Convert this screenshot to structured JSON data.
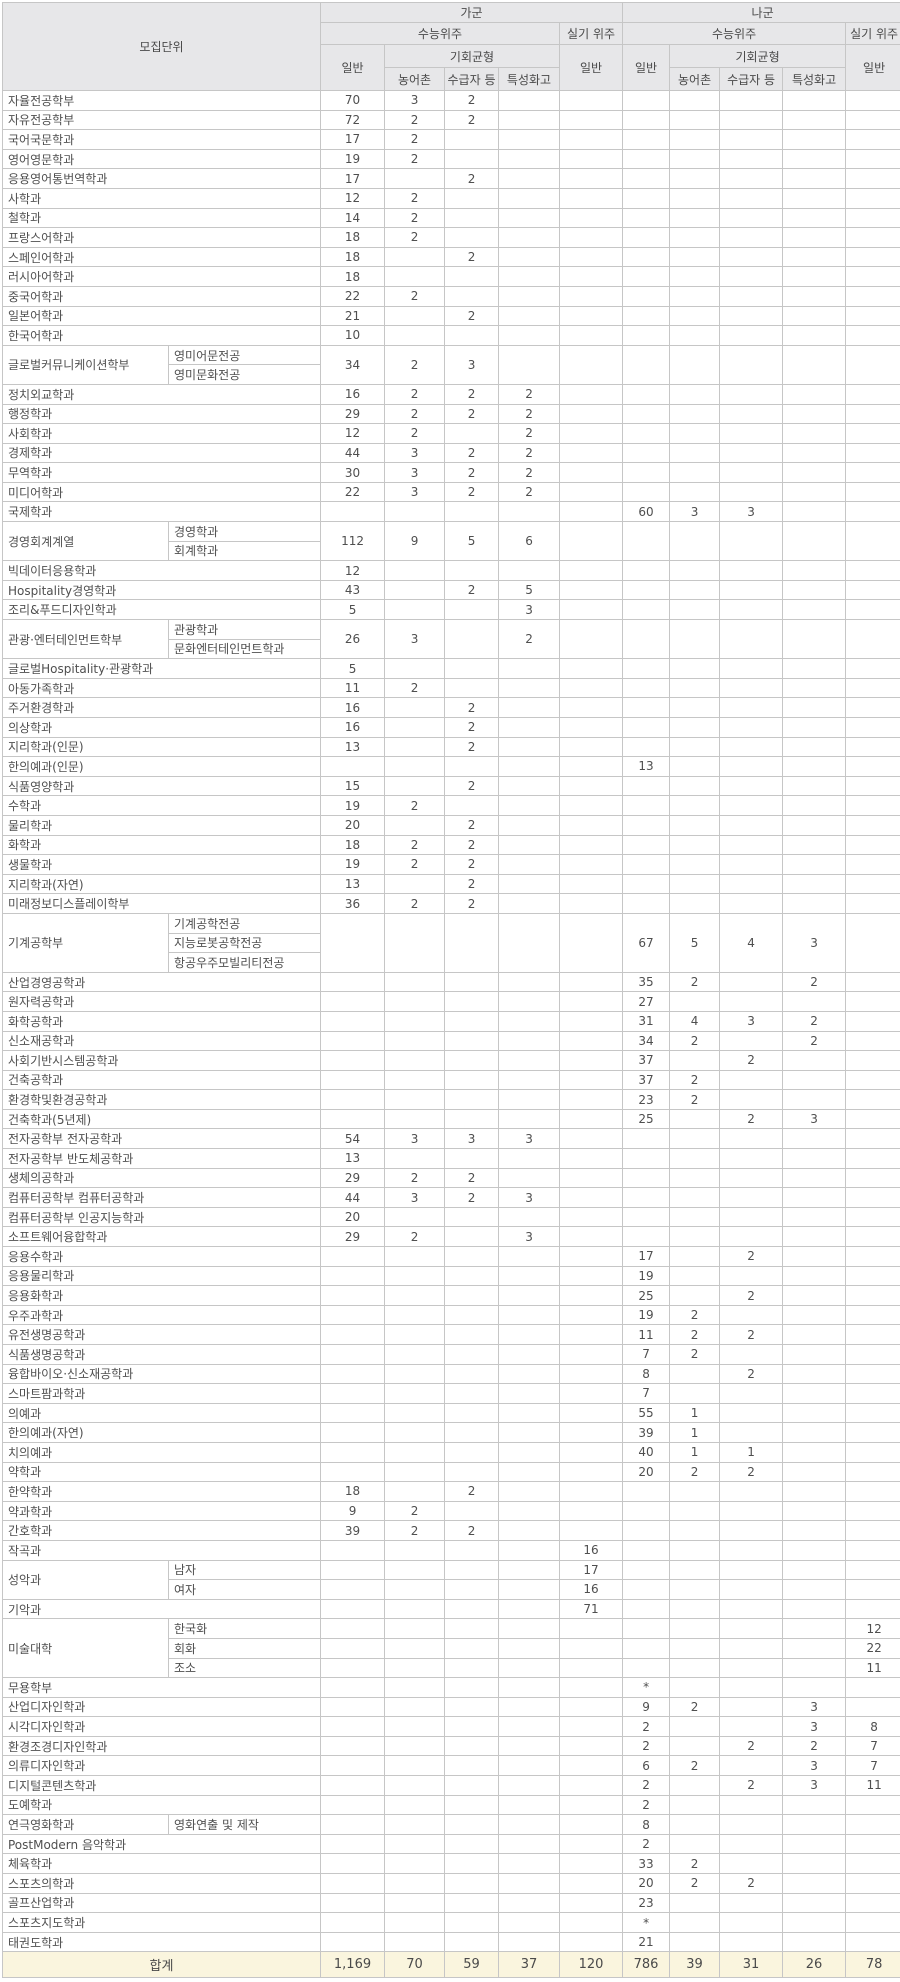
{
  "header": {
    "unit": "모집단위",
    "group_a": "가군",
    "group_b": "나군",
    "csat": "수능위주",
    "practical": "실기 위주",
    "general": "일반",
    "balance": "기회균형",
    "rural": "농어촌",
    "recipient": "수급자 등",
    "specialized": "특성화고"
  },
  "colors": {
    "header_bg": "#e7e7e9",
    "total_row_bg": "#faf5de",
    "border": "#c6c6c6",
    "text": "#4f4f4f"
  },
  "rows": [
    {
      "n": "자율전공학부",
      "c": [
        "70",
        "3",
        "2",
        "",
        "",
        "",
        "",
        "",
        "",
        ""
      ]
    },
    {
      "n": "자유전공학부",
      "c": [
        "72",
        "2",
        "2",
        "",
        "",
        "",
        "",
        "",
        "",
        ""
      ]
    },
    {
      "n": "국어국문학과",
      "c": [
        "17",
        "2",
        "",
        "",
        "",
        "",
        "",
        "",
        "",
        ""
      ]
    },
    {
      "n": "영어영문학과",
      "c": [
        "19",
        "2",
        "",
        "",
        "",
        "",
        "",
        "",
        "",
        ""
      ]
    },
    {
      "n": "응용영어통번역학과",
      "c": [
        "17",
        "",
        "2",
        "",
        "",
        "",
        "",
        "",
        "",
        ""
      ]
    },
    {
      "n": "사학과",
      "c": [
        "12",
        "2",
        "",
        "",
        "",
        "",
        "",
        "",
        "",
        ""
      ]
    },
    {
      "n": "철학과",
      "c": [
        "14",
        "2",
        "",
        "",
        "",
        "",
        "",
        "",
        "",
        ""
      ]
    },
    {
      "n": "프랑스어학과",
      "c": [
        "18",
        "2",
        "",
        "",
        "",
        "",
        "",
        "",
        "",
        ""
      ]
    },
    {
      "n": "스페인어학과",
      "c": [
        "18",
        "",
        "2",
        "",
        "",
        "",
        "",
        "",
        "",
        ""
      ]
    },
    {
      "n": "러시아어학과",
      "c": [
        "18",
        "",
        "",
        "",
        "",
        "",
        "",
        "",
        "",
        ""
      ]
    },
    {
      "n": "중국어학과",
      "c": [
        "22",
        "2",
        "",
        "",
        "",
        "",
        "",
        "",
        "",
        ""
      ]
    },
    {
      "n": "일본어학과",
      "c": [
        "21",
        "",
        "2",
        "",
        "",
        "",
        "",
        "",
        "",
        ""
      ]
    },
    {
      "n": "한국어학과",
      "c": [
        "10",
        "",
        "",
        "",
        "",
        "",
        "",
        "",
        "",
        ""
      ]
    },
    {
      "n": "글로벌커뮤니케이션학부",
      "subs": [
        "영미어문전공",
        "영미문화전공"
      ],
      "c": [
        "34",
        "2",
        "3",
        "",
        "",
        "",
        "",
        "",
        "",
        ""
      ]
    },
    {
      "n": "정치외교학과",
      "c": [
        "16",
        "2",
        "2",
        "2",
        "",
        "",
        "",
        "",
        "",
        ""
      ]
    },
    {
      "n": "행정학과",
      "c": [
        "29",
        "2",
        "2",
        "2",
        "",
        "",
        "",
        "",
        "",
        ""
      ]
    },
    {
      "n": "사회학과",
      "c": [
        "12",
        "2",
        "",
        "2",
        "",
        "",
        "",
        "",
        "",
        ""
      ]
    },
    {
      "n": "경제학과",
      "c": [
        "44",
        "3",
        "2",
        "2",
        "",
        "",
        "",
        "",
        "",
        ""
      ]
    },
    {
      "n": "무역학과",
      "c": [
        "30",
        "3",
        "2",
        "2",
        "",
        "",
        "",
        "",
        "",
        ""
      ]
    },
    {
      "n": "미디어학과",
      "c": [
        "22",
        "3",
        "2",
        "2",
        "",
        "",
        "",
        "",
        "",
        ""
      ]
    },
    {
      "n": "국제학과",
      "c": [
        "",
        "",
        "",
        "",
        "",
        "60",
        "3",
        "3",
        "",
        ""
      ]
    },
    {
      "n": "경영회계계열",
      "subs": [
        "경영학과",
        "회계학과"
      ],
      "c": [
        "112",
        "9",
        "5",
        "6",
        "",
        "",
        "",
        "",
        "",
        ""
      ]
    },
    {
      "n": "빅데이터응용학과",
      "c": [
        "12",
        "",
        "",
        "",
        "",
        "",
        "",
        "",
        "",
        ""
      ]
    },
    {
      "n": "Hospitality경영학과",
      "c": [
        "43",
        "",
        "2",
        "5",
        "",
        "",
        "",
        "",
        "",
        ""
      ]
    },
    {
      "n": "조리&푸드디자인학과",
      "c": [
        "5",
        "",
        "",
        "3",
        "",
        "",
        "",
        "",
        "",
        ""
      ]
    },
    {
      "n": "관광·엔터테인먼트학부",
      "subs": [
        "관광학과",
        "문화엔터테인먼트학과"
      ],
      "c": [
        "26",
        "3",
        "",
        "2",
        "",
        "",
        "",
        "",
        "",
        ""
      ]
    },
    {
      "n": "글로벌Hospitality·관광학과",
      "c": [
        "5",
        "",
        "",
        "",
        "",
        "",
        "",
        "",
        "",
        ""
      ]
    },
    {
      "n": "아동가족학과",
      "c": [
        "11",
        "2",
        "",
        "",
        "",
        "",
        "",
        "",
        "",
        ""
      ]
    },
    {
      "n": "주거환경학과",
      "c": [
        "16",
        "",
        "2",
        "",
        "",
        "",
        "",
        "",
        "",
        ""
      ]
    },
    {
      "n": "의상학과",
      "c": [
        "16",
        "",
        "2",
        "",
        "",
        "",
        "",
        "",
        "",
        ""
      ]
    },
    {
      "n": "지리학과(인문)",
      "c": [
        "13",
        "",
        "2",
        "",
        "",
        "",
        "",
        "",
        "",
        ""
      ]
    },
    {
      "n": "한의예과(인문)",
      "c": [
        "",
        "",
        "",
        "",
        "",
        "13",
        "",
        "",
        "",
        ""
      ]
    },
    {
      "n": "식품영양학과",
      "c": [
        "15",
        "",
        "2",
        "",
        "",
        "",
        "",
        "",
        "",
        ""
      ]
    },
    {
      "n": "수학과",
      "c": [
        "19",
        "2",
        "",
        "",
        "",
        "",
        "",
        "",
        "",
        ""
      ]
    },
    {
      "n": "물리학과",
      "c": [
        "20",
        "",
        "2",
        "",
        "",
        "",
        "",
        "",
        "",
        ""
      ]
    },
    {
      "n": "화학과",
      "c": [
        "18",
        "2",
        "2",
        "",
        "",
        "",
        "",
        "",
        "",
        ""
      ]
    },
    {
      "n": "생물학과",
      "c": [
        "19",
        "2",
        "2",
        "",
        "",
        "",
        "",
        "",
        "",
        ""
      ]
    },
    {
      "n": "지리학과(자연)",
      "c": [
        "13",
        "",
        "2",
        "",
        "",
        "",
        "",
        "",
        "",
        ""
      ]
    },
    {
      "n": "미래정보디스플레이학부",
      "c": [
        "36",
        "2",
        "2",
        "",
        "",
        "",
        "",
        "",
        "",
        ""
      ]
    },
    {
      "n": "기계공학부",
      "subs": [
        "기계공학전공",
        "지능로봇공학전공",
        "항공우주모빌리티전공"
      ],
      "c": [
        "",
        "",
        "",
        "",
        "",
        "67",
        "5",
        "4",
        "3",
        ""
      ]
    },
    {
      "n": "산업경영공학과",
      "c": [
        "",
        "",
        "",
        "",
        "",
        "35",
        "2",
        "",
        "2",
        ""
      ]
    },
    {
      "n": "원자력공학과",
      "c": [
        "",
        "",
        "",
        "",
        "",
        "27",
        "",
        "",
        "",
        ""
      ]
    },
    {
      "n": "화학공학과",
      "c": [
        "",
        "",
        "",
        "",
        "",
        "31",
        "4",
        "3",
        "2",
        ""
      ]
    },
    {
      "n": "신소재공학과",
      "c": [
        "",
        "",
        "",
        "",
        "",
        "34",
        "2",
        "",
        "2",
        ""
      ]
    },
    {
      "n": "사회기반시스템공학과",
      "c": [
        "",
        "",
        "",
        "",
        "",
        "37",
        "",
        "2",
        "",
        ""
      ]
    },
    {
      "n": "건축공학과",
      "c": [
        "",
        "",
        "",
        "",
        "",
        "37",
        "2",
        "",
        "",
        ""
      ]
    },
    {
      "n": "환경학및환경공학과",
      "c": [
        "",
        "",
        "",
        "",
        "",
        "23",
        "2",
        "",
        "",
        ""
      ]
    },
    {
      "n": "건축학과(5년제)",
      "c": [
        "",
        "",
        "",
        "",
        "",
        "25",
        "",
        "2",
        "3",
        ""
      ]
    },
    {
      "n": "전자공학부 전자공학과",
      "c": [
        "54",
        "3",
        "3",
        "3",
        "",
        "",
        "",
        "",
        "",
        ""
      ]
    },
    {
      "n": "전자공학부 반도체공학과",
      "c": [
        "13",
        "",
        "",
        "",
        "",
        "",
        "",
        "",
        "",
        ""
      ]
    },
    {
      "n": "생체의공학과",
      "c": [
        "29",
        "2",
        "2",
        "",
        "",
        "",
        "",
        "",
        "",
        ""
      ]
    },
    {
      "n": "컴퓨터공학부 컴퓨터공학과",
      "c": [
        "44",
        "3",
        "2",
        "3",
        "",
        "",
        "",
        "",
        "",
        ""
      ]
    },
    {
      "n": "컴퓨터공학부 인공지능학과",
      "c": [
        "20",
        "",
        "",
        "",
        "",
        "",
        "",
        "",
        "",
        ""
      ]
    },
    {
      "n": "소프트웨어융합학과",
      "c": [
        "29",
        "2",
        "",
        "3",
        "",
        "",
        "",
        "",
        "",
        ""
      ]
    },
    {
      "n": "응용수학과",
      "c": [
        "",
        "",
        "",
        "",
        "",
        "17",
        "",
        "2",
        "",
        ""
      ]
    },
    {
      "n": "응용물리학과",
      "c": [
        "",
        "",
        "",
        "",
        "",
        "19",
        "",
        "",
        "",
        ""
      ]
    },
    {
      "n": "응용화학과",
      "c": [
        "",
        "",
        "",
        "",
        "",
        "25",
        "",
        "2",
        "",
        ""
      ]
    },
    {
      "n": "우주과학과",
      "c": [
        "",
        "",
        "",
        "",
        "",
        "19",
        "2",
        "",
        "",
        ""
      ]
    },
    {
      "n": "유전생명공학과",
      "c": [
        "",
        "",
        "",
        "",
        "",
        "11",
        "2",
        "2",
        "",
        ""
      ]
    },
    {
      "n": "식품생명공학과",
      "c": [
        "",
        "",
        "",
        "",
        "",
        "7",
        "2",
        "",
        "",
        ""
      ]
    },
    {
      "n": "융합바이오·신소재공학과",
      "c": [
        "",
        "",
        "",
        "",
        "",
        "8",
        "",
        "2",
        "",
        ""
      ]
    },
    {
      "n": "스마트팜과학과",
      "c": [
        "",
        "",
        "",
        "",
        "",
        "7",
        "",
        "",
        "",
        ""
      ]
    },
    {
      "n": "의예과",
      "c": [
        "",
        "",
        "",
        "",
        "",
        "55",
        "1",
        "",
        "",
        ""
      ]
    },
    {
      "n": "한의예과(자연)",
      "c": [
        "",
        "",
        "",
        "",
        "",
        "39",
        "1",
        "",
        "",
        ""
      ]
    },
    {
      "n": "치의예과",
      "c": [
        "",
        "",
        "",
        "",
        "",
        "40",
        "1",
        "1",
        "",
        ""
      ]
    },
    {
      "n": "약학과",
      "c": [
        "",
        "",
        "",
        "",
        "",
        "20",
        "2",
        "2",
        "",
        ""
      ]
    },
    {
      "n": "한약학과",
      "c": [
        "18",
        "",
        "2",
        "",
        "",
        "",
        "",
        "",
        "",
        ""
      ]
    },
    {
      "n": "약과학과",
      "c": [
        "9",
        "2",
        "",
        "",
        "",
        "",
        "",
        "",
        "",
        ""
      ]
    },
    {
      "n": "간호학과",
      "c": [
        "39",
        "2",
        "2",
        "",
        "",
        "",
        "",
        "",
        "",
        ""
      ]
    },
    {
      "n": "작곡과",
      "c": [
        "",
        "",
        "",
        "",
        "16",
        "",
        "",
        "",
        "",
        ""
      ]
    },
    {
      "n": "성악과",
      "split": [
        {
          "s": "남자",
          "c": [
            "",
            "",
            "",
            "",
            "17",
            "",
            "",
            "",
            "",
            ""
          ]
        },
        {
          "s": "여자",
          "c": [
            "",
            "",
            "",
            "",
            "16",
            "",
            "",
            "",
            "",
            ""
          ]
        }
      ]
    },
    {
      "n": "기악과",
      "c": [
        "",
        "",
        "",
        "",
        "71",
        "",
        "",
        "",
        "",
        ""
      ]
    },
    {
      "n": "미술대학",
      "split": [
        {
          "s": "한국화",
          "c": [
            "",
            "",
            "",
            "",
            "",
            "",
            "",
            "",
            "",
            "12"
          ]
        },
        {
          "s": "회화",
          "c": [
            "",
            "",
            "",
            "",
            "",
            "",
            "",
            "",
            "",
            "22"
          ]
        },
        {
          "s": "조소",
          "c": [
            "",
            "",
            "",
            "",
            "",
            "",
            "",
            "",
            "",
            "11"
          ]
        }
      ]
    },
    {
      "n": "무용학부",
      "c": [
        "",
        "",
        "",
        "",
        "",
        "*",
        "",
        "",
        "",
        ""
      ]
    },
    {
      "n": "산업디자인학과",
      "c": [
        "",
        "",
        "",
        "",
        "",
        "9",
        "2",
        "",
        "3",
        ""
      ]
    },
    {
      "n": "시각디자인학과",
      "c": [
        "",
        "",
        "",
        "",
        "",
        "2",
        "",
        "",
        "3",
        "8"
      ]
    },
    {
      "n": "환경조경디자인학과",
      "c": [
        "",
        "",
        "",
        "",
        "",
        "2",
        "",
        "2",
        "2",
        "7"
      ]
    },
    {
      "n": "의류디자인학과",
      "c": [
        "",
        "",
        "",
        "",
        "",
        "6",
        "2",
        "",
        "3",
        "7"
      ]
    },
    {
      "n": "디지털콘텐츠학과",
      "c": [
        "",
        "",
        "",
        "",
        "",
        "2",
        "",
        "2",
        "3",
        "11"
      ]
    },
    {
      "n": "도예학과",
      "c": [
        "",
        "",
        "",
        "",
        "",
        "2",
        "",
        "",
        "",
        ""
      ]
    },
    {
      "n": "연극영화학과",
      "subs": [
        "영화연출 및 제작"
      ],
      "c": [
        "",
        "",
        "",
        "",
        "",
        "8",
        "",
        "",
        "",
        ""
      ]
    },
    {
      "n": "PostModern 음악학과",
      "c": [
        "",
        "",
        "",
        "",
        "",
        "2",
        "",
        "",
        "",
        ""
      ]
    },
    {
      "n": "체육학과",
      "c": [
        "",
        "",
        "",
        "",
        "",
        "33",
        "2",
        "",
        "",
        ""
      ]
    },
    {
      "n": "스포츠의학과",
      "c": [
        "",
        "",
        "",
        "",
        "",
        "20",
        "2",
        "2",
        "",
        ""
      ]
    },
    {
      "n": "골프산업학과",
      "c": [
        "",
        "",
        "",
        "",
        "",
        "23",
        "",
        "",
        "",
        ""
      ]
    },
    {
      "n": "스포츠지도학과",
      "c": [
        "",
        "",
        "",
        "",
        "",
        "*",
        "",
        "",
        "",
        ""
      ]
    },
    {
      "n": "태권도학과",
      "c": [
        "",
        "",
        "",
        "",
        "",
        "21",
        "",
        "",
        "",
        ""
      ]
    }
  ],
  "total": {
    "label": "합계",
    "c": [
      "1,169",
      "70",
      "59",
      "37",
      "120",
      "786",
      "39",
      "31",
      "26",
      "78"
    ]
  }
}
